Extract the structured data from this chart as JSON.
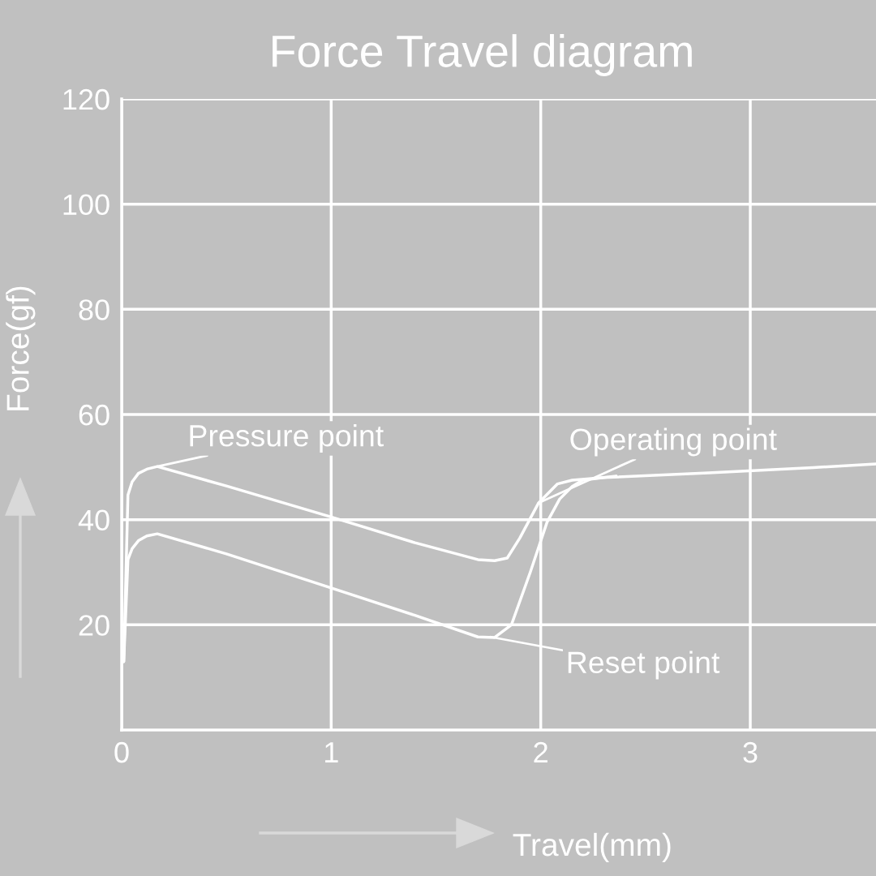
{
  "chart_data": {
    "type": "line",
    "title": "Force Travel diagram",
    "xlabel": "Travel(mm)",
    "ylabel": "Force(gf)",
    "xlim": [
      0,
      3.6
    ],
    "xticks": [
      0,
      1,
      2,
      3
    ],
    "ylim": [
      0,
      120
    ],
    "yticks": [
      20,
      40,
      60,
      80,
      100,
      120
    ],
    "grid": true,
    "legend": false,
    "marker": "none",
    "line_style": "solid",
    "series": [
      {
        "color": "#ffffff",
        "x": [
          0.01,
          0.03,
          0.05,
          0.08,
          0.12,
          0.17,
          0.5,
          1.0,
          1.4,
          1.7,
          1.78,
          1.84,
          1.9,
          1.99,
          2.08,
          2.15,
          2.3,
          2.8,
          3.3,
          3.6
        ],
        "values": [
          13,
          44.7,
          47.2,
          48.8,
          49.6,
          50.1,
          46.4,
          40.5,
          35.6,
          32.4,
          32.2,
          32.7,
          36.5,
          43.2,
          46.8,
          47.5,
          48.0,
          48.9,
          49.9,
          50.6
        ]
      },
      {
        "color": "#ffffff",
        "x": [
          0.01,
          0.03,
          0.05,
          0.08,
          0.12,
          0.17,
          0.5,
          1.0,
          1.4,
          1.7,
          1.78,
          1.86,
          1.95,
          2.03,
          2.09,
          2.15,
          2.2,
          2.3,
          2.36
        ],
        "values": [
          13,
          32.4,
          34.5,
          36.0,
          36.9,
          37.3,
          33.5,
          27.0,
          21.8,
          17.7,
          17.6,
          20.0,
          30.0,
          39.5,
          43.9,
          46.3,
          47.5,
          48.0,
          48.3
        ]
      }
    ],
    "annotations": [
      {
        "text": "Pressure point",
        "x": 0.17,
        "y": 50.1
      },
      {
        "text": "Operating point",
        "x": 1.99,
        "y": 43.2
      },
      {
        "text": "Reset point",
        "x": 1.76,
        "y": 17.7
      }
    ]
  }
}
